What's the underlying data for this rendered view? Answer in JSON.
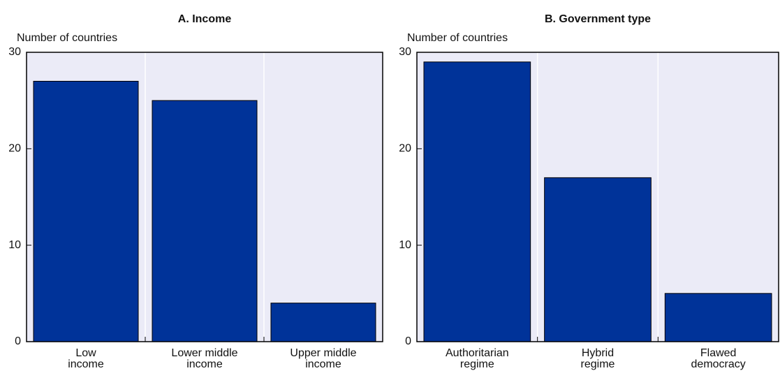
{
  "chart_data": [
    {
      "type": "bar",
      "title": "A. Income",
      "y_label": "Number of countries",
      "categories": [
        "Low\nincome",
        "Lower middle\nincome",
        "Upper middle\nincome"
      ],
      "values": [
        27,
        25,
        4
      ],
      "color": "#003399",
      "ylim": [
        0,
        30
      ],
      "yticks": [
        0,
        10,
        20,
        30
      ],
      "grid": true
    },
    {
      "type": "bar",
      "title": "B. Government type",
      "y_label": "Number of countries",
      "categories": [
        "Authoritarian\nregime",
        "Hybrid\nregime",
        "Flawed\ndemocracy"
      ],
      "values": [
        29,
        17,
        5
      ],
      "color": "#003399",
      "ylim": [
        0,
        30
      ],
      "yticks": [
        0,
        10,
        20,
        30
      ],
      "grid": true
    }
  ]
}
